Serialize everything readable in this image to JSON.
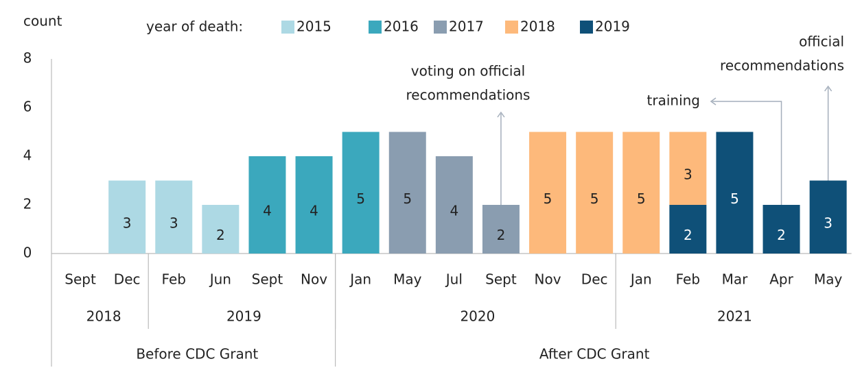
{
  "chart_data": {
    "type": "bar",
    "stacked": true,
    "y_label": "count",
    "legend_title": "year of death:",
    "categories": [
      "Sept",
      "Dec",
      "Feb",
      "Jun",
      "Sept",
      "Nov",
      "Jan",
      "May",
      "Jul",
      "Sept",
      "Nov",
      "Dec",
      "Jan",
      "Feb",
      "Mar",
      "Apr",
      "May"
    ],
    "years": [
      {
        "label": "2018",
        "span": 2
      },
      {
        "label": "2019",
        "span": 4
      },
      {
        "label": "2020",
        "span": 6
      },
      {
        "label": "2021",
        "span": 5
      }
    ],
    "periods": [
      {
        "label": "Before CDC Grant",
        "span": 6
      },
      {
        "label": "After CDC Grant",
        "span": 11
      }
    ],
    "series": [
      {
        "name": "2015",
        "color": "#add9e4",
        "values": [
          null,
          3,
          3,
          2,
          null,
          null,
          null,
          null,
          null,
          null,
          null,
          null,
          null,
          null,
          null,
          null,
          null
        ]
      },
      {
        "name": "2016",
        "color": "#3ba8bd",
        "values": [
          null,
          null,
          null,
          null,
          4,
          4,
          5,
          null,
          null,
          null,
          null,
          null,
          null,
          null,
          null,
          null,
          null
        ]
      },
      {
        "name": "2017",
        "color": "#8a9db0",
        "values": [
          null,
          null,
          null,
          null,
          null,
          null,
          null,
          5,
          4,
          2,
          null,
          null,
          null,
          null,
          null,
          null,
          null
        ]
      },
      {
        "name": "2018",
        "color": "#fdb97b",
        "values": [
          null,
          null,
          null,
          null,
          null,
          null,
          null,
          null,
          null,
          null,
          5,
          5,
          5,
          3,
          null,
          null,
          null
        ]
      },
      {
        "name": "2019",
        "color": "#0f5078",
        "values": [
          null,
          null,
          null,
          null,
          null,
          null,
          null,
          null,
          null,
          null,
          null,
          null,
          null,
          2,
          5,
          2,
          3
        ]
      }
    ],
    "ylim": [
      0,
      8
    ],
    "yticks": [
      0,
      2,
      4,
      6,
      8
    ],
    "grid": false,
    "annotations": [
      {
        "text": [
          "voting on official",
          "recommendations"
        ]
      },
      {
        "text": [
          "training"
        ]
      },
      {
        "text": [
          "official",
          "recommendations"
        ]
      }
    ]
  }
}
